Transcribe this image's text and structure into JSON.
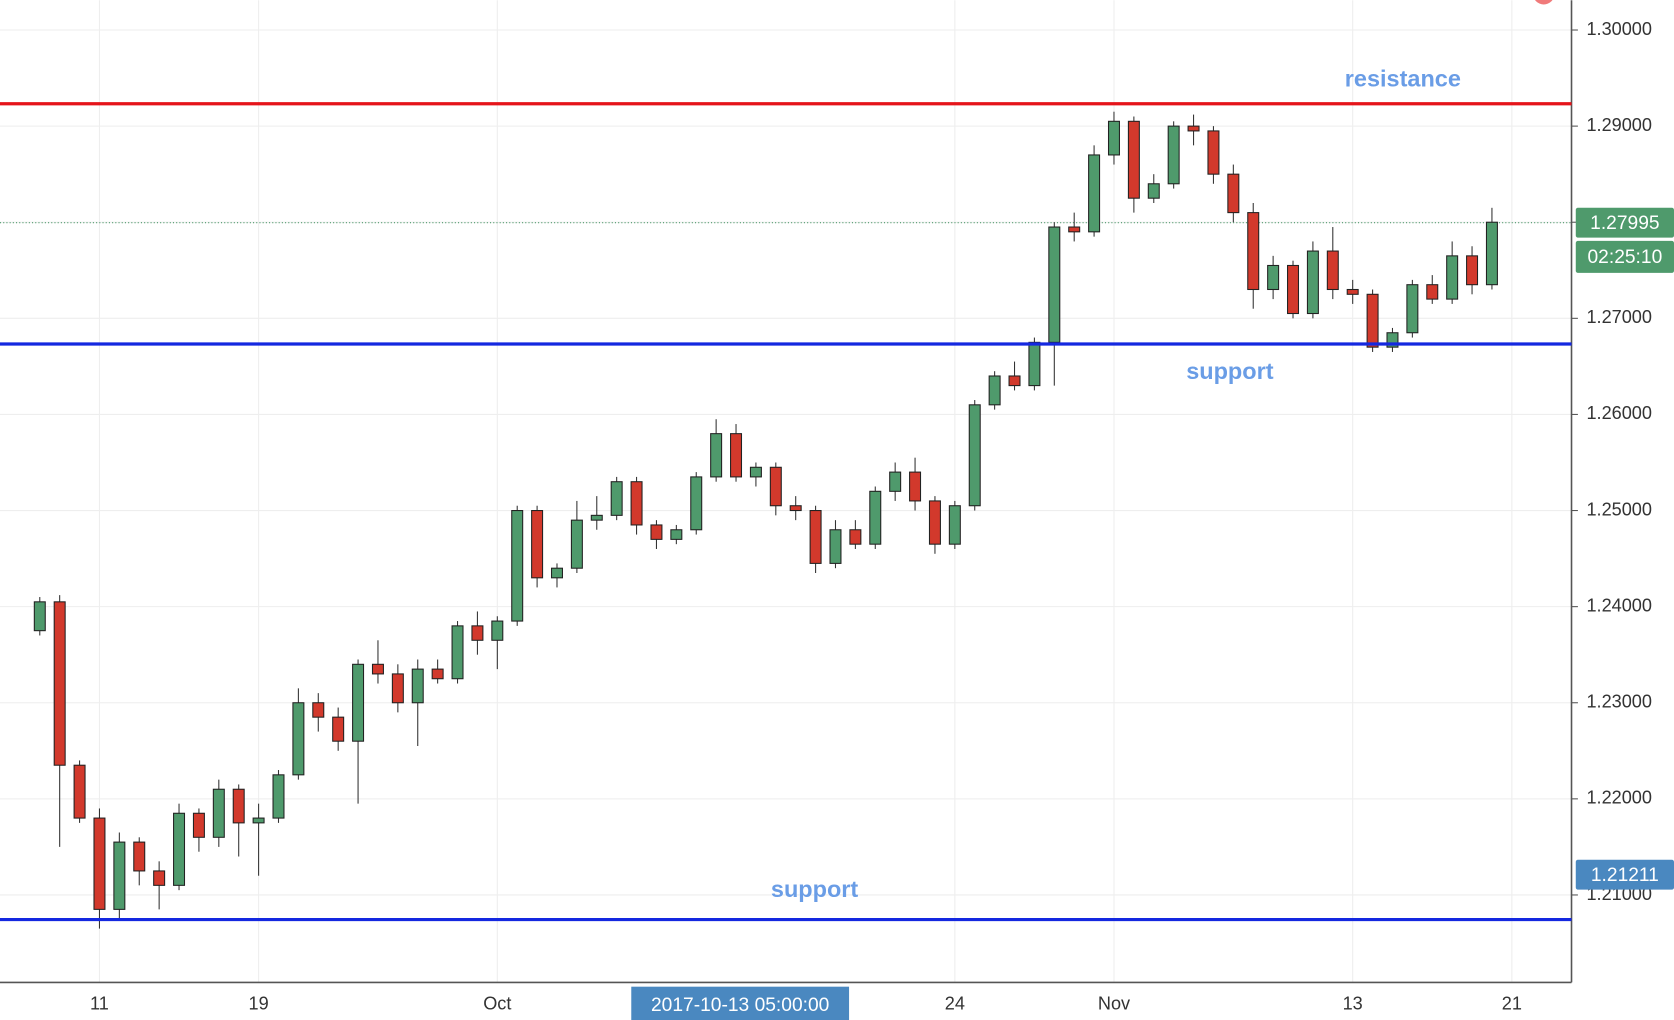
{
  "chart_data": {
    "type": "candlestick",
    "x": [
      "2017-09-08",
      "2017-09-09",
      "2017-09-10",
      "2017-09-11",
      "2017-09-12",
      "2017-09-13",
      "2017-09-14",
      "2017-09-15",
      "2017-09-16",
      "2017-09-17",
      "2017-09-18",
      "2017-09-19",
      "2017-09-20",
      "2017-09-21",
      "2017-09-22",
      "2017-09-23",
      "2017-09-24",
      "2017-09-25",
      "2017-09-26",
      "2017-09-27",
      "2017-09-28",
      "2017-09-29",
      "2017-09-30",
      "2017-10-01",
      "2017-10-02",
      "2017-10-03",
      "2017-10-04",
      "2017-10-05",
      "2017-10-06",
      "2017-10-07",
      "2017-10-08",
      "2017-10-09",
      "2017-10-10",
      "2017-10-11",
      "2017-10-12",
      "2017-10-13",
      "2017-10-14",
      "2017-10-15",
      "2017-10-16",
      "2017-10-17",
      "2017-10-18",
      "2017-10-19",
      "2017-10-20",
      "2017-10-21",
      "2017-10-22",
      "2017-10-23",
      "2017-10-24",
      "2017-10-25",
      "2017-10-26",
      "2017-10-27",
      "2017-10-28",
      "2017-10-29",
      "2017-10-30",
      "2017-10-31",
      "2017-11-01",
      "2017-11-02",
      "2017-11-03",
      "2017-11-04",
      "2017-11-05",
      "2017-11-06",
      "2017-11-07",
      "2017-11-08",
      "2017-11-09",
      "2017-11-10",
      "2017-11-11",
      "2017-11-12",
      "2017-11-13",
      "2017-11-14",
      "2017-11-15",
      "2017-11-16",
      "2017-11-17",
      "2017-11-18",
      "2017-11-19",
      "2017-11-20"
    ],
    "open": [
      1.2375,
      1.2405,
      1.2235,
      1.218,
      1.2085,
      1.2155,
      1.2125,
      1.211,
      1.2185,
      1.216,
      1.221,
      1.2175,
      1.218,
      1.2225,
      1.23,
      1.2285,
      1.226,
      1.234,
      1.233,
      1.23,
      1.2335,
      1.2325,
      1.238,
      1.2365,
      1.2385,
      1.25,
      1.243,
      1.244,
      1.249,
      1.2495,
      1.253,
      1.2485,
      1.247,
      1.248,
      1.2535,
      1.258,
      1.2535,
      1.2545,
      1.2505,
      1.25,
      1.2445,
      1.248,
      1.2465,
      1.252,
      1.254,
      1.251,
      1.2465,
      1.2505,
      1.261,
      1.264,
      1.263,
      1.2675,
      1.2795,
      1.279,
      1.287,
      1.2905,
      1.2825,
      1.284,
      1.29,
      1.2895,
      1.285,
      1.281,
      1.273,
      1.2755,
      1.2705,
      1.277,
      1.273,
      1.2725,
      1.267,
      1.2685,
      1.2735,
      1.272,
      1.2765,
      1.2735
    ],
    "high": [
      1.241,
      1.2412,
      1.224,
      1.219,
      1.2165,
      1.216,
      1.2135,
      1.2195,
      1.219,
      1.222,
      1.2215,
      1.2195,
      1.223,
      1.2315,
      1.231,
      1.2295,
      1.2345,
      1.2365,
      1.234,
      1.2345,
      1.2345,
      1.2385,
      1.2395,
      1.239,
      1.2505,
      1.2505,
      1.2445,
      1.251,
      1.2515,
      1.2535,
      1.2535,
      1.249,
      1.2485,
      1.254,
      1.2595,
      1.259,
      1.255,
      1.255,
      1.2515,
      1.2505,
      1.249,
      1.249,
      1.2525,
      1.255,
      1.2555,
      1.2515,
      1.251,
      1.2615,
      1.2645,
      1.2655,
      1.268,
      1.28,
      1.281,
      1.288,
      1.2915,
      1.291,
      1.285,
      1.2905,
      1.2912,
      1.29,
      1.286,
      1.282,
      1.2765,
      1.276,
      1.278,
      1.2795,
      1.274,
      1.273,
      1.269,
      1.274,
      1.2745,
      1.278,
      1.2775,
      1.2815
    ],
    "low": [
      1.237,
      1.215,
      1.2175,
      1.2065,
      1.2075,
      1.211,
      1.2085,
      1.2105,
      1.2145,
      1.215,
      1.214,
      1.212,
      1.2175,
      1.222,
      1.227,
      1.225,
      1.2195,
      1.232,
      1.229,
      1.2255,
      1.232,
      1.232,
      1.235,
      1.2335,
      1.238,
      1.242,
      1.242,
      1.2435,
      1.248,
      1.249,
      1.2475,
      1.246,
      1.2465,
      1.2475,
      1.253,
      1.253,
      1.2525,
      1.2495,
      1.249,
      1.2435,
      1.244,
      1.246,
      1.246,
      1.251,
      1.25,
      1.2455,
      1.246,
      1.25,
      1.2605,
      1.2625,
      1.2625,
      1.263,
      1.278,
      1.2785,
      1.286,
      1.281,
      1.282,
      1.2835,
      1.288,
      1.284,
      1.28,
      1.271,
      1.272,
      1.27,
      1.27,
      1.272,
      1.2715,
      1.2665,
      1.2665,
      1.268,
      1.2715,
      1.2715,
      1.2725,
      1.273
    ],
    "close": [
      1.2405,
      1.2235,
      1.218,
      1.2085,
      1.2155,
      1.2125,
      1.211,
      1.2185,
      1.216,
      1.221,
      1.2175,
      1.218,
      1.2225,
      1.23,
      1.2285,
      1.226,
      1.234,
      1.233,
      1.23,
      1.2335,
      1.2325,
      1.238,
      1.2365,
      1.2385,
      1.25,
      1.243,
      1.244,
      1.249,
      1.2495,
      1.253,
      1.2485,
      1.247,
      1.248,
      1.2535,
      1.258,
      1.2535,
      1.2545,
      1.2505,
      1.25,
      1.2445,
      1.248,
      1.2465,
      1.252,
      1.254,
      1.251,
      1.2465,
      1.2505,
      1.261,
      1.264,
      1.263,
      1.2675,
      1.2795,
      1.279,
      1.287,
      1.2905,
      1.2825,
      1.284,
      1.29,
      1.2895,
      1.285,
      1.281,
      1.273,
      1.2755,
      1.2705,
      1.277,
      1.273,
      1.2725,
      1.267,
      1.2685,
      1.2735,
      1.272,
      1.2765,
      1.2735,
      1.28
    ],
    "up_color": "#4f9a6c",
    "down_color": "#d2392c",
    "xlim": [
      "2017-09-06",
      "2017-11-24"
    ],
    "xticks": [
      {
        "value": "2017-09-11",
        "label": "11"
      },
      {
        "value": "2017-09-19",
        "label": "19"
      },
      {
        "value": "2017-10-01",
        "label": "Oct"
      },
      {
        "value": "2017-10-24",
        "label": "24"
      },
      {
        "value": "2017-11-01",
        "label": "Nov"
      },
      {
        "value": "2017-11-13",
        "label": "13"
      },
      {
        "value": "2017-11-21",
        "label": "21"
      }
    ],
    "ylim": [
      1.2009,
      1.3031
    ],
    "yticks": [
      {
        "value": 1.21,
        "label": "1.21000"
      },
      {
        "value": 1.22,
        "label": "1.22000"
      },
      {
        "value": 1.23,
        "label": "1.23000"
      },
      {
        "value": 1.24,
        "label": "1.24000"
      },
      {
        "value": 1.25,
        "label": "1.25000"
      },
      {
        "value": 1.26,
        "label": "1.26000"
      },
      {
        "value": 1.27,
        "label": "1.27000"
      },
      {
        "value": 1.28,
        "label": "1.28000"
      },
      {
        "value": 1.29,
        "label": "1.29000"
      },
      {
        "value": 1.3,
        "label": "1.30000"
      }
    ],
    "grid": true,
    "levels": [
      {
        "label": "resistance",
        "value": 1.29233,
        "color": "#e5141a"
      },
      {
        "label": "support",
        "value": 1.26733,
        "color": "#1428e0"
      },
      {
        "label": "support",
        "value": 1.20744,
        "color": "#1428e0"
      }
    ],
    "last_price": 1.27995,
    "countdown": "02:25:10",
    "crosshair": {
      "price": 1.21211,
      "time": "2017-10-13 05:00:00"
    }
  }
}
